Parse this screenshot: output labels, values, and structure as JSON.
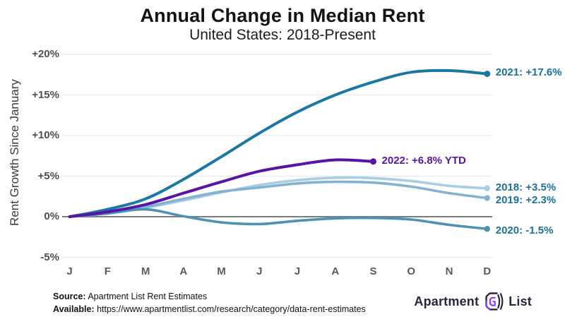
{
  "chart_data": {
    "type": "line",
    "title": "Annual Change in Median Rent",
    "subtitle": "United States: 2018-Present",
    "xlabel": "",
    "ylabel": "Rent Growth Since January",
    "x_tick_labels": [
      "J",
      "F",
      "M",
      "A",
      "M",
      "J",
      "J",
      "A",
      "S",
      "O",
      "N",
      "D"
    ],
    "y_ticks": [
      {
        "value": 20,
        "label": "+20%"
      },
      {
        "value": 15,
        "label": "+15%"
      },
      {
        "value": 10,
        "label": "+10%"
      },
      {
        "value": 5,
        "label": "+5%"
      },
      {
        "value": 0,
        "label": "0%"
      },
      {
        "value": -5,
        "label": "-5%"
      }
    ],
    "ylim": [
      -6.5,
      21
    ],
    "grid": true,
    "legend_position": "end-of-line-labels",
    "series": [
      {
        "name": "2018",
        "end_label": "2018: +3.5%",
        "color": "#a9cde2",
        "label_color": "#19719e",
        "values": [
          0,
          0.4,
          1.1,
          2.0,
          3.0,
          3.9,
          4.5,
          4.8,
          4.75,
          4.4,
          3.8,
          3.5
        ]
      },
      {
        "name": "2019",
        "end_label": "2019: +2.3%",
        "color": "#83b3d1",
        "label_color": "#19719e",
        "values": [
          0,
          0.5,
          1.2,
          2.2,
          3.1,
          3.6,
          4.1,
          4.3,
          4.2,
          3.7,
          2.9,
          2.3
        ]
      },
      {
        "name": "2020",
        "end_label": "2020: -1.5%",
        "color": "#4d92b5",
        "label_color": "#19719e",
        "values": [
          0,
          0.4,
          0.9,
          0.05,
          -0.7,
          -0.9,
          -0.5,
          -0.2,
          -0.15,
          -0.35,
          -1.0,
          -1.5
        ]
      },
      {
        "name": "2021",
        "end_label": "2021: +17.6%",
        "color": "#1979a4",
        "label_color": "#15719f",
        "values": [
          0,
          0.9,
          2.2,
          4.6,
          7.4,
          10.3,
          12.9,
          15.0,
          16.6,
          17.8,
          18.0,
          17.6
        ]
      },
      {
        "name": "2022",
        "end_label": "2022: +6.8% YTD",
        "color": "#5a13a7",
        "label_color": "#5a13a7",
        "values": [
          0,
          0.6,
          1.5,
          2.9,
          4.3,
          5.6,
          6.4,
          7.0,
          6.8
        ]
      }
    ]
  },
  "footer": {
    "source_label": "Source:",
    "source_text": " Apartment List Rent Estimates",
    "available_label": "Available:",
    "available_text": " https://www.apartmentlist.com/research/category/data-rent-estimates"
  },
  "logo": {
    "word1": "Apartment",
    "word2": "List"
  },
  "style": {
    "grid_color": "#e8e8e8",
    "zero_line_color": "#7c7c7c",
    "logo_navy": "#2a2440",
    "logo_purple": "#8c3bff"
  }
}
